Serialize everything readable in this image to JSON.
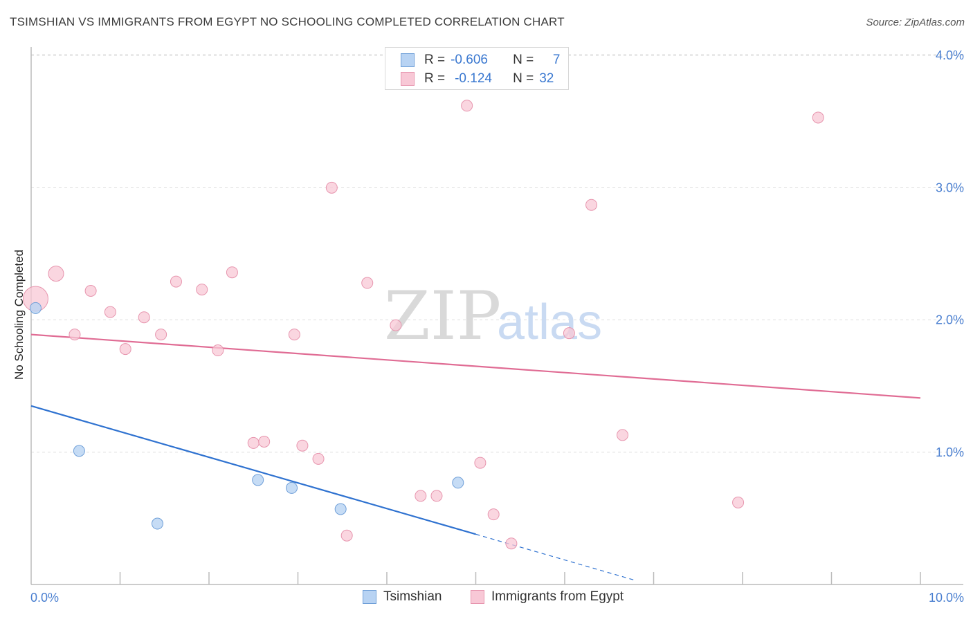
{
  "title": "TSIMSHIAN VS IMMIGRANTS FROM EGYPT NO SCHOOLING COMPLETED CORRELATION CHART",
  "source": "Source: ZipAtlas.com",
  "watermark": {
    "part1": "ZIP",
    "part2": "atlas"
  },
  "colors": {
    "blue_fill": "#b8d3f3",
    "blue_stroke": "#6f9fd8",
    "blue_line": "#2f72d0",
    "pink_fill": "#f8c8d6",
    "pink_stroke": "#e795ae",
    "pink_line": "#e06c94",
    "grid": "#dddddd",
    "axis": "#bbbbbb",
    "tick_text": "#4a7fd0"
  },
  "legend": {
    "rows": [
      {
        "r_label": "R =",
        "r_value": "-0.606",
        "n_label": "N =",
        "n_value": "7"
      },
      {
        "r_label": "R =",
        "r_value": "-0.124",
        "n_label": "N =",
        "n_value": "32"
      }
    ]
  },
  "bottom_legend": [
    "Tsimshian",
    "Immigrants from Egypt"
  ],
  "chart_data": {
    "type": "scatter",
    "title": "TSIMSHIAN VS IMMIGRANTS FROM EGYPT NO SCHOOLING COMPLETED CORRELATION CHART",
    "xlabel": "",
    "ylabel": "No Schooling Completed",
    "xlim": [
      0,
      10
    ],
    "ylim": [
      0,
      4.1
    ],
    "x_tick_labels": [
      "0.0%",
      "10.0%"
    ],
    "y_ticks": [
      1,
      2,
      3,
      4
    ],
    "y_tick_labels": [
      "1.0%",
      "2.0%",
      "3.0%",
      "4.0%"
    ],
    "grid": true,
    "series": [
      {
        "name": "Tsimshian",
        "points": [
          {
            "x": 0.05,
            "y": 2.09,
            "r": 8
          },
          {
            "x": 0.54,
            "y": 1.01,
            "r": 8
          },
          {
            "x": 1.42,
            "y": 0.46,
            "r": 8
          },
          {
            "x": 2.55,
            "y": 0.79,
            "r": 8
          },
          {
            "x": 2.93,
            "y": 0.73,
            "r": 8
          },
          {
            "x": 3.48,
            "y": 0.57,
            "r": 8
          },
          {
            "x": 4.8,
            "y": 0.77,
            "r": 8
          }
        ],
        "trend": {
          "x0": 0.0,
          "y0": 1.35,
          "x1": 5.0,
          "y1": 0.38,
          "dash_x1": 6.8,
          "dash_y1": 0.03
        }
      },
      {
        "name": "Immigrants from Egypt",
        "points": [
          {
            "x": 0.05,
            "y": 2.16,
            "r": 18
          },
          {
            "x": 0.28,
            "y": 2.35,
            "r": 11
          },
          {
            "x": 0.49,
            "y": 1.89,
            "r": 8
          },
          {
            "x": 0.67,
            "y": 2.22,
            "r": 8
          },
          {
            "x": 0.89,
            "y": 2.06,
            "r": 8
          },
          {
            "x": 1.06,
            "y": 1.78,
            "r": 8
          },
          {
            "x": 1.27,
            "y": 2.02,
            "r": 8
          },
          {
            "x": 1.46,
            "y": 1.89,
            "r": 8
          },
          {
            "x": 1.63,
            "y": 2.29,
            "r": 8
          },
          {
            "x": 1.92,
            "y": 2.23,
            "r": 8
          },
          {
            "x": 2.1,
            "y": 1.77,
            "r": 8
          },
          {
            "x": 2.26,
            "y": 2.36,
            "r": 8
          },
          {
            "x": 2.5,
            "y": 1.07,
            "r": 8
          },
          {
            "x": 2.62,
            "y": 1.08,
            "r": 8
          },
          {
            "x": 2.96,
            "y": 1.89,
            "r": 8
          },
          {
            "x": 3.05,
            "y": 1.05,
            "r": 8
          },
          {
            "x": 3.23,
            "y": 0.95,
            "r": 8
          },
          {
            "x": 3.38,
            "y": 3.0,
            "r": 8
          },
          {
            "x": 3.55,
            "y": 0.37,
            "r": 8
          },
          {
            "x": 3.78,
            "y": 2.28,
            "r": 8
          },
          {
            "x": 4.1,
            "y": 1.96,
            "r": 8
          },
          {
            "x": 4.38,
            "y": 0.67,
            "r": 8
          },
          {
            "x": 4.56,
            "y": 0.67,
            "r": 8
          },
          {
            "x": 4.9,
            "y": 3.62,
            "r": 8
          },
          {
            "x": 5.05,
            "y": 0.92,
            "r": 8
          },
          {
            "x": 5.2,
            "y": 0.53,
            "r": 8
          },
          {
            "x": 5.4,
            "y": 0.31,
            "r": 8
          },
          {
            "x": 6.05,
            "y": 1.9,
            "r": 8
          },
          {
            "x": 6.3,
            "y": 2.87,
            "r": 8
          },
          {
            "x": 6.65,
            "y": 1.13,
            "r": 8
          },
          {
            "x": 7.95,
            "y": 0.62,
            "r": 8
          },
          {
            "x": 8.85,
            "y": 3.53,
            "r": 8
          }
        ],
        "trend": {
          "x0": 0.0,
          "y0": 1.89,
          "x1": 10.0,
          "y1": 1.41
        }
      }
    ]
  }
}
